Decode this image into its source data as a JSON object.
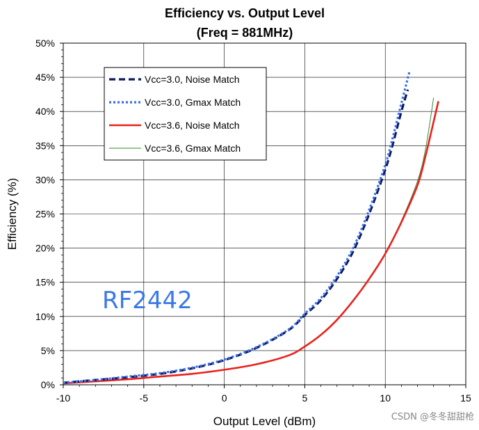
{
  "chart_data": {
    "type": "line",
    "title": "Efficiency vs. Output Level",
    "subtitle": "(Freq = 881MHz)",
    "xlabel": "Output Level (dBm)",
    "ylabel": "Efficiency (%)",
    "xlim": [
      -10,
      15
    ],
    "ylim": [
      0,
      50
    ],
    "x_ticks": [
      -10,
      -5,
      0,
      5,
      10,
      15
    ],
    "y_ticks": [
      0,
      5,
      10,
      15,
      20,
      25,
      30,
      35,
      40,
      45,
      50
    ],
    "y_tick_suffix": "%",
    "grid": true,
    "legend_position": "upper-left",
    "series": [
      {
        "name": "Vcc=3.0, Noise Match",
        "color": "#0b1a5c",
        "style": "dashed-thick",
        "points": [
          [
            -10,
            0.3
          ],
          [
            -8,
            0.7
          ],
          [
            -6,
            1.1
          ],
          [
            -4,
            1.6
          ],
          [
            -2,
            2.4
          ],
          [
            0,
            3.6
          ],
          [
            2,
            5.4
          ],
          [
            4,
            8.0
          ],
          [
            5,
            10.2
          ],
          [
            6,
            12.4
          ],
          [
            7,
            15.5
          ],
          [
            8,
            19.5
          ],
          [
            9,
            25.0
          ],
          [
            10,
            31.5
          ],
          [
            10.5,
            35.5
          ],
          [
            11,
            40.0
          ],
          [
            11.4,
            43.2
          ]
        ]
      },
      {
        "name": "Vcc=3.0, Gmax Match",
        "color": "#3b6ee8",
        "style": "dotted-thick",
        "points": [
          [
            -10,
            0.3
          ],
          [
            -8,
            0.7
          ],
          [
            -6,
            1.2
          ],
          [
            -4,
            1.7
          ],
          [
            -2,
            2.5
          ],
          [
            0,
            3.7
          ],
          [
            2,
            5.5
          ],
          [
            4,
            8.1
          ],
          [
            5,
            10.4
          ],
          [
            6,
            12.7
          ],
          [
            7,
            15.9
          ],
          [
            8,
            20.0
          ],
          [
            9,
            25.6
          ],
          [
            10,
            32.2
          ],
          [
            10.5,
            36.5
          ],
          [
            11,
            41.2
          ],
          [
            11.5,
            45.8
          ]
        ]
      },
      {
        "name": "Vcc=3.6, Noise Match",
        "color": "#e8211b",
        "style": "solid-thick",
        "points": [
          [
            -10,
            0.2
          ],
          [
            -8,
            0.5
          ],
          [
            -6,
            0.8
          ],
          [
            -4,
            1.2
          ],
          [
            -2,
            1.6
          ],
          [
            0,
            2.2
          ],
          [
            2,
            3.0
          ],
          [
            4,
            4.3
          ],
          [
            5,
            5.6
          ],
          [
            6,
            7.3
          ],
          [
            7,
            9.5
          ],
          [
            8,
            12.3
          ],
          [
            9,
            15.5
          ],
          [
            10,
            19.2
          ],
          [
            11,
            23.8
          ],
          [
            12,
            29.2
          ],
          [
            12.5,
            33.5
          ],
          [
            13,
            38.5
          ],
          [
            13.3,
            41.5
          ]
        ]
      },
      {
        "name": "Vcc=3.6, Gmax Match",
        "color": "#2e8b2e",
        "style": "solid-thin",
        "points": [
          [
            -10,
            0.2
          ],
          [
            -8,
            0.5
          ],
          [
            -6,
            0.8
          ],
          [
            -4,
            1.2
          ],
          [
            -2,
            1.6
          ],
          [
            0,
            2.2
          ],
          [
            2,
            3.0
          ],
          [
            4,
            4.3
          ],
          [
            5,
            5.6
          ],
          [
            6,
            7.3
          ],
          [
            7,
            9.5
          ],
          [
            8,
            12.3
          ],
          [
            9,
            15.5
          ],
          [
            10,
            19.2
          ],
          [
            11,
            24.0
          ],
          [
            12,
            29.8
          ],
          [
            12.5,
            34.5
          ],
          [
            13,
            42.0
          ]
        ]
      }
    ],
    "annotation": "RF2442",
    "watermark": "CSDN @冬冬甜甜枪"
  }
}
